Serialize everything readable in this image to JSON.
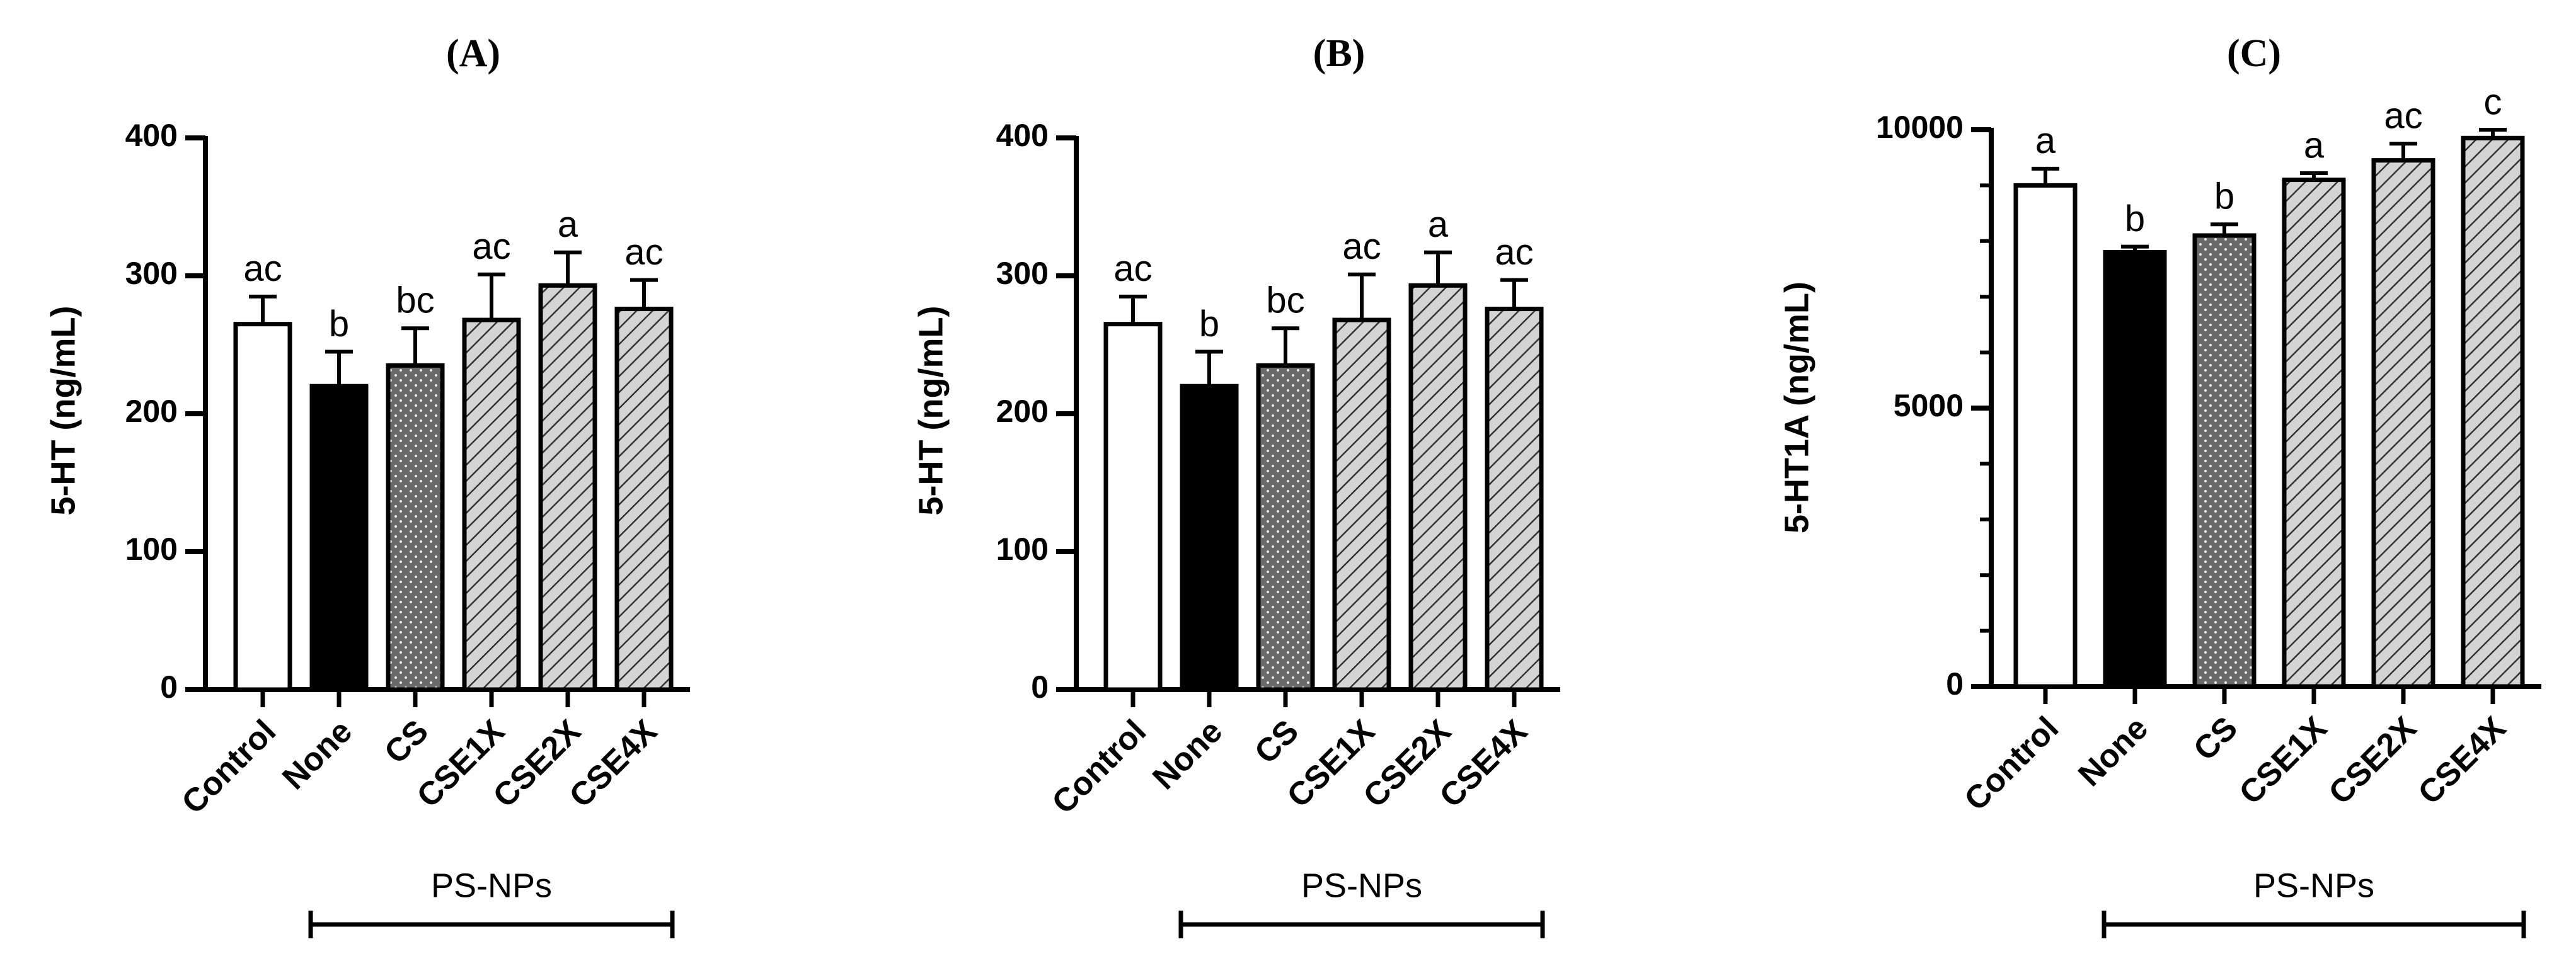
{
  "chart_data": [
    {
      "type": "bar",
      "title": "(A)",
      "y_label": "5-HT (ng/mL)",
      "categories": [
        "Control",
        "None",
        "CS",
        "CSE1X",
        "CSE2X",
        "CSE4X"
      ],
      "values": [
        265,
        220,
        235,
        268,
        293,
        276
      ],
      "errors": [
        20,
        25,
        27,
        33,
        24,
        21
      ],
      "annotations": [
        "ac",
        "b",
        "bc",
        "ac",
        "a",
        "ac"
      ],
      "fills": [
        "white",
        "black",
        "dots",
        "hatch",
        "hatch",
        "hatch"
      ],
      "ylim": [
        0,
        400
      ],
      "yticks": [
        0,
        100,
        200,
        300,
        400
      ],
      "group_label": "PS-NPs"
    },
    {
      "type": "bar",
      "title": "(B)",
      "y_label": "5-HT (ng/mL)",
      "categories": [
        "Control",
        "None",
        "CS",
        "CSE1X",
        "CSE2X",
        "CSE4X"
      ],
      "values": [
        265,
        220,
        235,
        268,
        293,
        276
      ],
      "errors": [
        20,
        25,
        27,
        33,
        24,
        21
      ],
      "annotations": [
        "ac",
        "b",
        "bc",
        "ac",
        "a",
        "ac"
      ],
      "fills": [
        "white",
        "black",
        "dots",
        "hatch",
        "hatch",
        "hatch"
      ],
      "ylim": [
        0,
        400
      ],
      "yticks": [
        0,
        100,
        200,
        300,
        400
      ],
      "group_label": "PS-NPs"
    },
    {
      "type": "bar",
      "title": "(C)",
      "y_label": "5-HT1A (ng/mL)",
      "categories": [
        "Control",
        "None",
        "CS",
        "CSE1X",
        "CSE2X",
        "CSE4X"
      ],
      "values": [
        9000,
        7800,
        8100,
        9100,
        9450,
        9850
      ],
      "errors": [
        300,
        100,
        200,
        120,
        300,
        150
      ],
      "annotations": [
        "a",
        "b",
        "b",
        "a",
        "ac",
        "c"
      ],
      "fills": [
        "white",
        "black",
        "dots",
        "hatch",
        "hatch",
        "hatch"
      ],
      "ylim": [
        0,
        10000
      ],
      "yticks": [
        0,
        5000,
        10000
      ],
      "yminor": [
        1000,
        2000,
        3000,
        4000,
        6000,
        7000,
        8000,
        9000
      ],
      "group_label": "PS-NPs"
    }
  ]
}
